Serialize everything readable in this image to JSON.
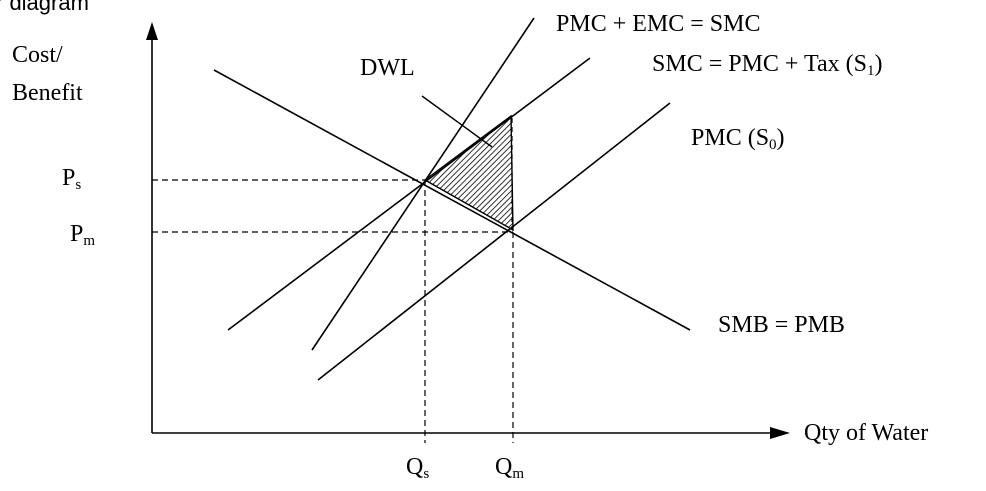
{
  "header": {
    "fragment": "r diagram"
  },
  "axes": {
    "y_label_line1": "Cost/",
    "y_label_line2": "Benefit",
    "x_label": "Qty of Water"
  },
  "prices": {
    "ps_main": "P",
    "ps_sub": "s",
    "pm_main": "P",
    "pm_sub": "m"
  },
  "quantities": {
    "qs_main": "Q",
    "qs_sub": "s",
    "qm_main": "Q",
    "qm_sub": "m"
  },
  "curves": {
    "smc_emc": "PMC + EMC = SMC",
    "smc_tax_pre": "SMC = PMC + Tax (S",
    "smc_tax_sub": "1",
    "smc_tax_post": ")",
    "pmc_pre": "PMC (S",
    "pmc_sub": "0",
    "pmc_post": ")",
    "smb": "SMB = PMB",
    "dwl": "DWL"
  },
  "colors": {
    "line": "#000000",
    "hatch": "#000000",
    "background": "#ffffff"
  }
}
